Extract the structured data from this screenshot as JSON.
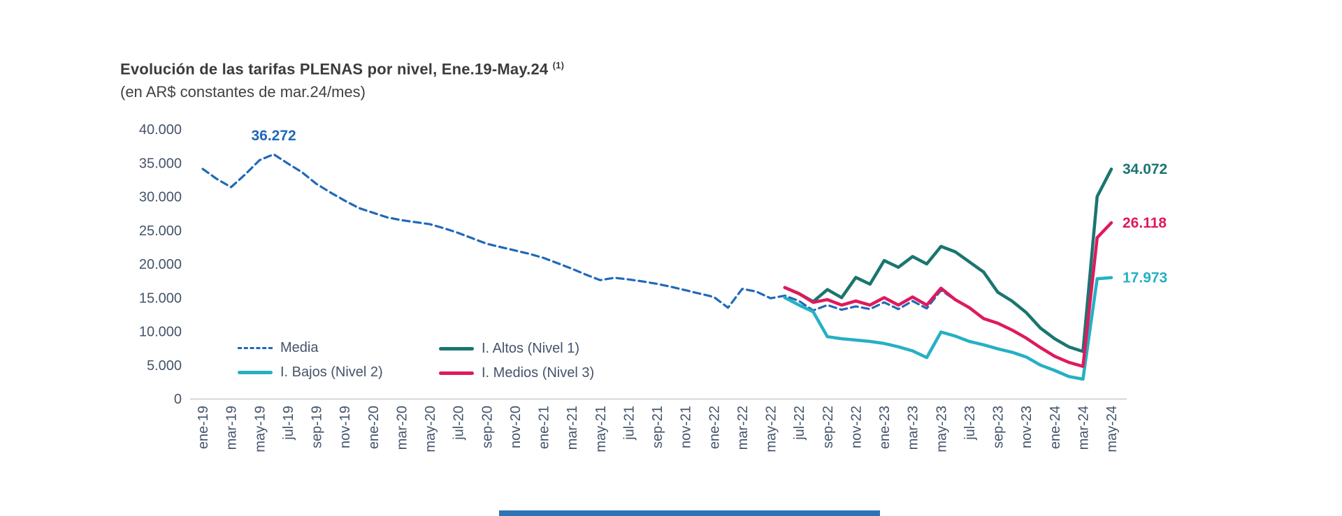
{
  "header": {
    "title": "Evolución de las tarifas PLENAS por nivel, Ene.19-May.24",
    "note": "(1)",
    "subtitle": "(en AR$ constantes de mar.24/mes)"
  },
  "legend": [
    {
      "label": "Media",
      "slug": "media",
      "color": "#2069b8",
      "dashed": true
    },
    {
      "label": "I. Altos (Nivel 1)",
      "slug": "altos",
      "color": "#1a7570",
      "dashed": false
    },
    {
      "label": "I. Bajos (Nivel 2)",
      "slug": "bajos",
      "color": "#25b0c4",
      "dashed": false
    },
    {
      "label": "I. Medios (Nivel 3)",
      "slug": "medios",
      "color": "#df1a5c",
      "dashed": false
    }
  ],
  "chart_style": {
    "axis_text_color": "#44546a",
    "axis_line_color": "#c9c9c9"
  },
  "footer": {
    "accent_color": "#2e74b5"
  },
  "chart_data": {
    "type": "line",
    "title": "Evolución de las tarifas PLENAS por nivel, Ene.19-May.24 (1)",
    "subtitle": "(en AR$ constantes de mar.24/mes)",
    "ylim": [
      0,
      40000
    ],
    "y_ticks": [
      0,
      5000,
      10000,
      15000,
      20000,
      25000,
      30000,
      35000,
      40000
    ],
    "y_tick_labels": [
      "0",
      "5.000",
      "10.000",
      "15.000",
      "20.000",
      "25.000",
      "30.000",
      "35.000",
      "40.000"
    ],
    "x_tick_every": 2,
    "grid": false,
    "legend_position": "inside-bottom-left",
    "x": [
      "ene-19",
      "feb-19",
      "mar-19",
      "abr-19",
      "may-19",
      "jun-19",
      "jul-19",
      "ago-19",
      "sep-19",
      "oct-19",
      "nov-19",
      "dic-19",
      "ene-20",
      "feb-20",
      "mar-20",
      "abr-20",
      "may-20",
      "jun-20",
      "jul-20",
      "ago-20",
      "sep-20",
      "oct-20",
      "nov-20",
      "dic-20",
      "ene-21",
      "feb-21",
      "mar-21",
      "abr-21",
      "may-21",
      "jun-21",
      "jul-21",
      "ago-21",
      "sep-21",
      "oct-21",
      "nov-21",
      "dic-21",
      "ene-22",
      "feb-22",
      "mar-22",
      "abr-22",
      "may-22",
      "jun-22",
      "jul-22",
      "ago-22",
      "sep-22",
      "oct-22",
      "nov-22",
      "dic-22",
      "ene-23",
      "feb-23",
      "mar-23",
      "abr-23",
      "may-23",
      "jun-23",
      "jul-23",
      "ago-23",
      "sep-23",
      "oct-23",
      "nov-23",
      "dic-23",
      "ene-24",
      "feb-24",
      "mar-24",
      "abr-24",
      "may-24"
    ],
    "series": [
      {
        "name": "Media",
        "slug": "media",
        "color": "#2069b8",
        "dash": true,
        "values": [
          34100,
          32600,
          31400,
          33300,
          35400,
          36272,
          34900,
          33600,
          31900,
          30600,
          29400,
          28300,
          27600,
          26900,
          26500,
          26200,
          25900,
          25300,
          24600,
          23800,
          23000,
          22500,
          22000,
          21500,
          20900,
          20100,
          19300,
          18400,
          17600,
          17950,
          17700,
          17400,
          17050,
          16600,
          16100,
          15600,
          15100,
          13500,
          16300,
          15900,
          14900,
          15300,
          14500,
          13100,
          13900,
          13200,
          13700,
          13300,
          14300,
          13300,
          14500,
          13400,
          16100,
          14650,
          13450,
          11850,
          11150,
          10150,
          8950,
          7550,
          6250,
          5350,
          4750,
          23850,
          26060
        ]
      },
      {
        "name": "I. Bajos (Nivel 2)",
        "slug": "bajos",
        "color": "#25b0c4",
        "dash": false,
        "values": [
          null,
          null,
          null,
          null,
          null,
          null,
          null,
          null,
          null,
          null,
          null,
          null,
          null,
          null,
          null,
          null,
          null,
          null,
          null,
          null,
          null,
          null,
          null,
          null,
          null,
          null,
          null,
          null,
          null,
          null,
          null,
          null,
          null,
          null,
          null,
          null,
          null,
          null,
          null,
          null,
          null,
          15000,
          13900,
          12900,
          9200,
          8900,
          8700,
          8500,
          8200,
          7700,
          7100,
          6100,
          9900,
          9300,
          8500,
          8000,
          7400,
          6900,
          6200,
          5000,
          4200,
          3300,
          2900,
          17800,
          17973
        ]
      },
      {
        "name": "I. Altos (Nivel 1)",
        "slug": "altos",
        "color": "#1a7570",
        "dash": false,
        "values": [
          null,
          null,
          null,
          null,
          null,
          null,
          null,
          null,
          null,
          null,
          null,
          null,
          null,
          null,
          null,
          null,
          null,
          null,
          null,
          null,
          null,
          null,
          null,
          null,
          null,
          null,
          null,
          null,
          null,
          null,
          null,
          null,
          null,
          null,
          null,
          null,
          null,
          null,
          null,
          null,
          null,
          16500,
          15600,
          14400,
          16200,
          15000,
          18000,
          17000,
          20500,
          19500,
          21100,
          20000,
          22600,
          21800,
          20300,
          18800,
          15800,
          14500,
          12800,
          10500,
          8900,
          7700,
          7000,
          30000,
          34072
        ]
      },
      {
        "name": "I. Medios (Nivel 3)",
        "slug": "medios",
        "color": "#df1a5c",
        "dash": false,
        "values": [
          null,
          null,
          null,
          null,
          null,
          null,
          null,
          null,
          null,
          null,
          null,
          null,
          null,
          null,
          null,
          null,
          null,
          null,
          null,
          null,
          null,
          null,
          null,
          null,
          null,
          null,
          null,
          null,
          null,
          null,
          null,
          null,
          null,
          null,
          null,
          null,
          null,
          null,
          null,
          null,
          null,
          16500,
          15600,
          14300,
          14700,
          13900,
          14500,
          13900,
          15000,
          13900,
          15100,
          13900,
          16400,
          14700,
          13500,
          11900,
          11200,
          10200,
          9000,
          7600,
          6300,
          5400,
          4800,
          23900,
          26118
        ]
      }
    ],
    "annotations": [
      {
        "text": "36.272",
        "series": "media",
        "month": "jun-19",
        "month_index": 5,
        "value": 36272,
        "placement": "above",
        "color": "#2069b8"
      },
      {
        "text": "34.072",
        "series": "altos",
        "month": "may-24",
        "month_index": 64,
        "value": 34072,
        "placement": "right",
        "color": "#1a7570"
      },
      {
        "text": "26.118",
        "series": "medios",
        "month": "may-24",
        "month_index": 64,
        "value": 26118,
        "placement": "right",
        "color": "#df1a5c"
      },
      {
        "text": "17.973",
        "series": "bajos",
        "month": "may-24",
        "month_index": 64,
        "value": 17973,
        "placement": "right",
        "color": "#25b0c4"
      }
    ]
  }
}
